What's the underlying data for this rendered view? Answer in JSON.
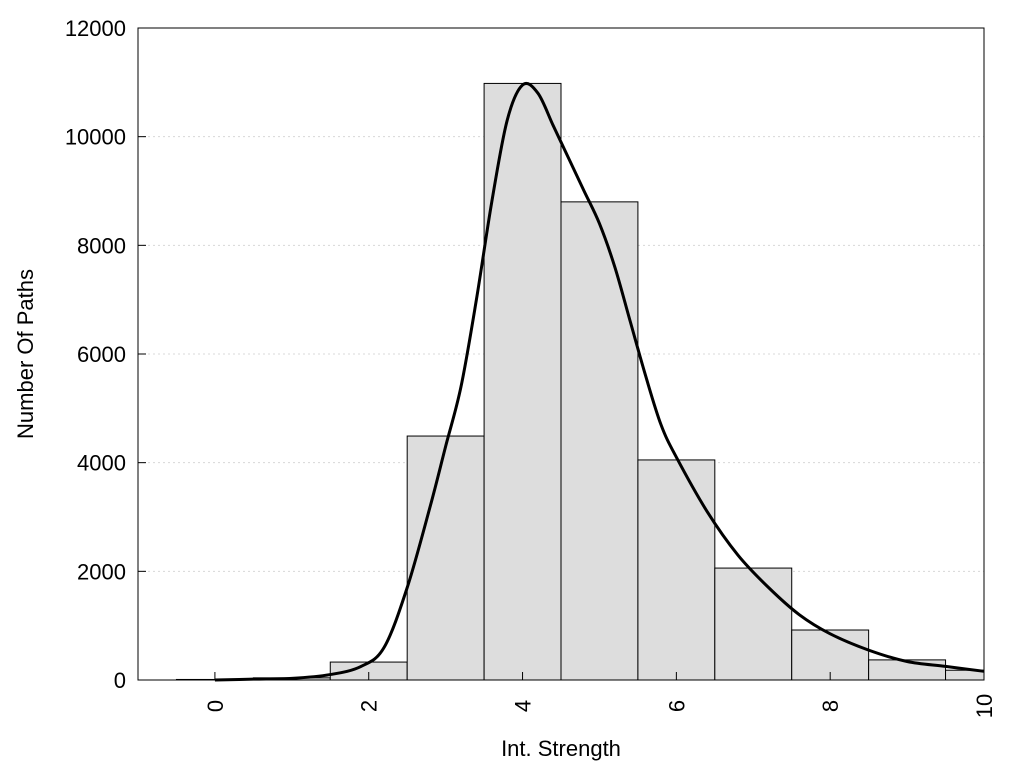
{
  "chart_data": {
    "type": "bar",
    "title": "",
    "xlabel": "Int. Strength",
    "ylabel": "Number Of Paths",
    "xlim": [
      -1,
      10
    ],
    "ylim": [
      0,
      12000
    ],
    "x_ticks": [
      0,
      2,
      4,
      6,
      8,
      10
    ],
    "y_ticks": [
      0,
      2000,
      4000,
      6000,
      8000,
      10000,
      12000
    ],
    "grid": "horizontal dotted",
    "legend": "none",
    "bars": [
      {
        "x": 0,
        "value": 10
      },
      {
        "x": 1,
        "value": 40
      },
      {
        "x": 2,
        "value": 330
      },
      {
        "x": 3,
        "value": 4490
      },
      {
        "x": 4,
        "value": 10980
      },
      {
        "x": 5,
        "value": 8800
      },
      {
        "x": 6,
        "value": 4050
      },
      {
        "x": 7,
        "value": 2060
      },
      {
        "x": 8,
        "value": 920
      },
      {
        "x": 9,
        "value": 370
      },
      {
        "x": 10,
        "value": 180
      }
    ],
    "curve": {
      "x": [
        0,
        0.5,
        1,
        1.5,
        1.9,
        2.2,
        2.5,
        2.8,
        3.0,
        3.2,
        3.4,
        3.6,
        3.8,
        4.0,
        4.2,
        4.4,
        4.6,
        4.8,
        5.0,
        5.2,
        5.4,
        5.6,
        5.8,
        6.0,
        6.4,
        6.8,
        7.2,
        7.6,
        8.0,
        8.5,
        9.0,
        9.5,
        10.0
      ],
      "y": [
        0,
        15,
        30,
        100,
        250,
        600,
        1700,
        3200,
        4300,
        5400,
        7000,
        8800,
        10300,
        10950,
        10800,
        10200,
        9600,
        9000,
        8400,
        7600,
        6600,
        5600,
        4700,
        4100,
        3100,
        2300,
        1700,
        1200,
        850,
        550,
        340,
        250,
        160
      ]
    },
    "colors": {
      "bar_fill": "#dddddd",
      "bar_stroke": "#000000",
      "curve": "#000000",
      "grid": "#d8d8d8"
    }
  }
}
